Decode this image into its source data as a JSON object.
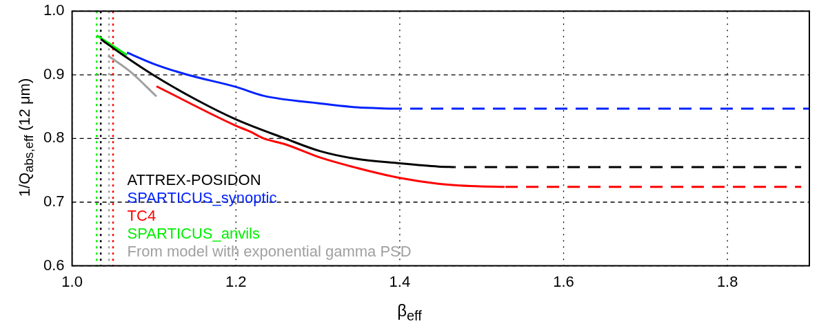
{
  "chart_data": {
    "type": "line",
    "xlabel": "β$_{eff}$",
    "ylabel": "1/Q$_{abs,eff}$ (12 μm)",
    "xlim": [
      1.0,
      1.9
    ],
    "ylim": [
      0.6,
      1.0
    ],
    "xticks": [
      {
        "value": 1.0,
        "label": "1.0"
      },
      1.2,
      1.4,
      1.6,
      1.8
    ],
    "yticks": [
      {
        "value": 0.6,
        "label": "0.6"
      },
      0.7,
      0.8,
      0.9,
      {
        "value": 1.0,
        "label": "1.0"
      }
    ],
    "grid": true,
    "legend": "bottom left",
    "marker": "none",
    "series": [
      {
        "name": "ATTREX-POSIDON",
        "color": "#000000",
        "x": [
          1.035,
          1.06,
          1.1,
          1.15,
          1.2,
          1.26,
          1.303,
          1.347,
          1.4,
          1.447,
          1.467
        ],
        "values": [
          0.956,
          0.933,
          0.899,
          0.862,
          0.83,
          0.8,
          0.78,
          0.768,
          0.761,
          0.756,
          0.755
        ]
      },
      {
        "name": "SPARTICUS_synoptic",
        "color": "#0022ff",
        "x": [
          1.067,
          1.1,
          1.141,
          1.2,
          1.234,
          1.303,
          1.347,
          1.39
        ],
        "values": [
          0.935,
          0.917,
          0.9,
          0.881,
          0.867,
          0.855,
          0.849,
          0.847
        ]
      },
      {
        "name": "TC4",
        "color": "#ff0000",
        "x": [
          1.103,
          1.2,
          1.217,
          1.234,
          1.26,
          1.303,
          1.347,
          1.4,
          1.447,
          1.493,
          1.528
        ],
        "values": [
          0.882,
          0.82,
          0.811,
          0.8,
          0.791,
          0.77,
          0.754,
          0.738,
          0.729,
          0.725,
          0.724
        ]
      },
      {
        "name": "SPARTICUS_anvils",
        "color": "#00ee00",
        "x": [
          1.03,
          1.067
        ],
        "values": [
          0.962,
          0.931
        ]
      },
      {
        "name": "From model with exponential gamma PSD",
        "color": "#a0a0a0",
        "x": [
          1.044,
          1.071,
          1.103
        ],
        "values": [
          0.93,
          0.905,
          0.866
        ]
      },
      {
        "color": "#000000",
        "line_style": "dashed",
        "x": [
          1.467,
          1.89
        ],
        "values": [
          0.755,
          0.755
        ]
      },
      {
        "color": "#0022ff",
        "line_style": "dashed",
        "x": [
          1.39,
          1.9
        ],
        "values": [
          0.847,
          0.847
        ]
      },
      {
        "color": "#ff0000",
        "line_style": "dashed",
        "x": [
          1.528,
          1.89
        ],
        "values": [
          0.724,
          0.724
        ]
      }
    ],
    "ref_lines": [
      {
        "axis": "x",
        "value": 1.03,
        "color": "#00ee00",
        "line_style": "dotted"
      },
      {
        "axis": "x",
        "value": 1.035,
        "color": "#000000",
        "line_style": "dotted"
      },
      {
        "axis": "x",
        "value": 1.045,
        "color": "#a0a0a0",
        "line_style": "dotted"
      },
      {
        "axis": "x",
        "value": 1.05,
        "color": "#ff0000",
        "line_style": "dotted"
      }
    ]
  }
}
